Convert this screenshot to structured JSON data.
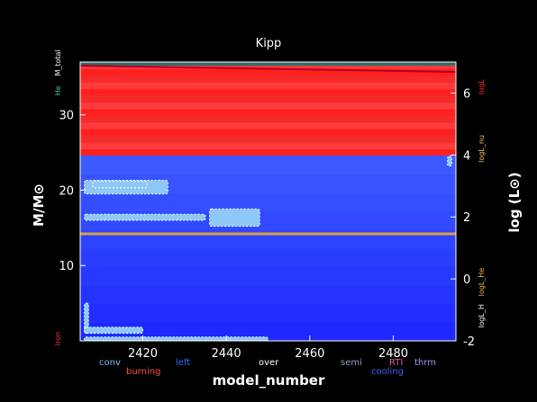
{
  "chart_data": {
    "type": "area",
    "title": "Kipp",
    "xlabel": "model_number",
    "ylabel_left": "M/M⊙",
    "ylabel_right": "log (L⊙)",
    "xlim": [
      2405,
      2495
    ],
    "ylim_left": [
      0,
      37
    ],
    "ylim_right": [
      -2,
      7
    ],
    "x_ticks": [
      "2420",
      "2440",
      "2460",
      "2480"
    ],
    "y_ticks_left": [
      "10",
      "20",
      "30"
    ],
    "y_ticks_right": [
      "-2",
      "0",
      "2",
      "4",
      "6"
    ],
    "left_markers": [
      {
        "label": "M_total",
        "color": "#ffffff",
        "y": 36.9
      },
      {
        "label": "He",
        "color": "#40c0b0",
        "y": 33.2
      },
      {
        "label": "Iron",
        "color": "#ff3030",
        "y": 0.3
      }
    ],
    "right_markers": [
      {
        "label": "logL",
        "color": "#ff3030",
        "y": 6.2
      },
      {
        "label": "logL_nu",
        "color": "#f0c070",
        "y": 4.2
      },
      {
        "label": "logL_He",
        "color": "#f0b040",
        "y": -0.1
      },
      {
        "label": "logL_H",
        "color": "#f0f0f0",
        "y": -1.2
      }
    ],
    "regions": {
      "burning_top": 37,
      "burning_bottom": 24.6,
      "cooling_top": 24.6,
      "cooling_bottom": 0,
      "he_core_mass": 14.2
    },
    "convective_blobs": [
      {
        "x": [
          2406,
          2426
        ],
        "y": [
          19.5,
          21.3
        ]
      },
      {
        "x": [
          2408,
          2421
        ],
        "y": [
          20.3,
          21.2
        ]
      },
      {
        "x": [
          2406,
          2435
        ],
        "y": [
          16.0,
          16.8
        ]
      },
      {
        "x": [
          2436,
          2448
        ],
        "y": [
          15.2,
          17.5
        ]
      },
      {
        "x": [
          2406,
          2407
        ],
        "y": [
          1.0,
          5.0
        ]
      },
      {
        "x": [
          2406,
          2420
        ],
        "y": [
          1.0,
          1.8
        ]
      },
      {
        "x": [
          2406,
          2450
        ],
        "y": [
          0.0,
          0.5
        ]
      },
      {
        "x": [
          2493,
          2494
        ],
        "y": [
          23.2,
          24.5
        ]
      }
    ],
    "legend": [
      {
        "label": "conv",
        "color": "#7fb8f0"
      },
      {
        "label": "burning",
        "color": "#ff5040"
      },
      {
        "label": "left",
        "color": "#3070ff"
      },
      {
        "label": "over",
        "color": "#ffffff"
      },
      {
        "label": "semi",
        "color": "#8aa0c0"
      },
      {
        "label": "RTI",
        "color": "#d060a0"
      },
      {
        "label": "cooling",
        "color": "#4060ff"
      },
      {
        "label": "thrm",
        "color": "#b090f0"
      }
    ]
  }
}
